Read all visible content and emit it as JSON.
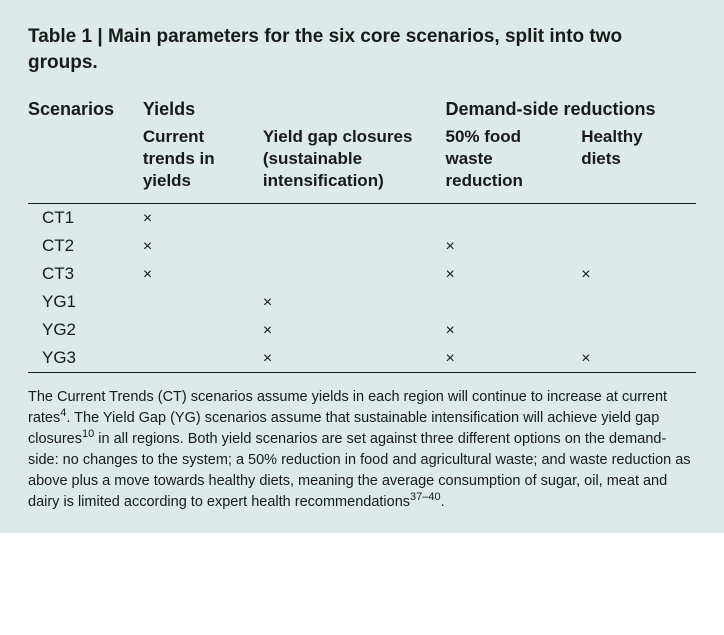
{
  "colors": {
    "background": "#dceaea",
    "text": "#1a1a1a",
    "rule": "#1a1a1a"
  },
  "typography": {
    "title_fontsize": 19,
    "header_fontsize": 18,
    "subheader_fontsize": 17,
    "body_fontsize": 17,
    "footnote_fontsize": 14.5
  },
  "title_prefix": "Table 1 | ",
  "title_text": "Main parameters for the six core scenarios, split into two groups.",
  "headers": {
    "scenarios": "Scenarios",
    "yields": "Yields",
    "demand": "Demand-side reductions"
  },
  "subheaders": {
    "current_trends": "Current trends in yields",
    "yield_gap": "Yield gap closures (sustainable intensification)",
    "food_waste": "50% food waste reduction",
    "healthy_diets": "Healthy diets"
  },
  "mark_glyph": "×",
  "rows": [
    {
      "name": "CT1",
      "ct": true,
      "yg": false,
      "fw": false,
      "hd": false
    },
    {
      "name": "CT2",
      "ct": true,
      "yg": false,
      "fw": true,
      "hd": false
    },
    {
      "name": "CT3",
      "ct": true,
      "yg": false,
      "fw": true,
      "hd": true
    },
    {
      "name": "YG1",
      "ct": false,
      "yg": true,
      "fw": false,
      "hd": false
    },
    {
      "name": "YG2",
      "ct": false,
      "yg": true,
      "fw": true,
      "hd": false
    },
    {
      "name": "YG3",
      "ct": false,
      "yg": true,
      "fw": true,
      "hd": true
    }
  ],
  "footnote_parts": {
    "p1": "The Current Trends (CT) scenarios assume yields in each region will continue to increase at current rates",
    "s1": "4",
    "p2": ". The Yield Gap (YG) scenarios assume that sustainable intensification will achieve yield gap closures",
    "s2": "10",
    "p3": " in all regions. Both yield scenarios are set against three different options on the demand-side: no changes to the system; a 50% reduction in food and agricultural waste; and waste reduction as above plus a move towards healthy diets, meaning the average consumption of sugar, oil, meat and dairy is limited according to expert health recommendations",
    "s3": "37–40",
    "p4": "."
  }
}
